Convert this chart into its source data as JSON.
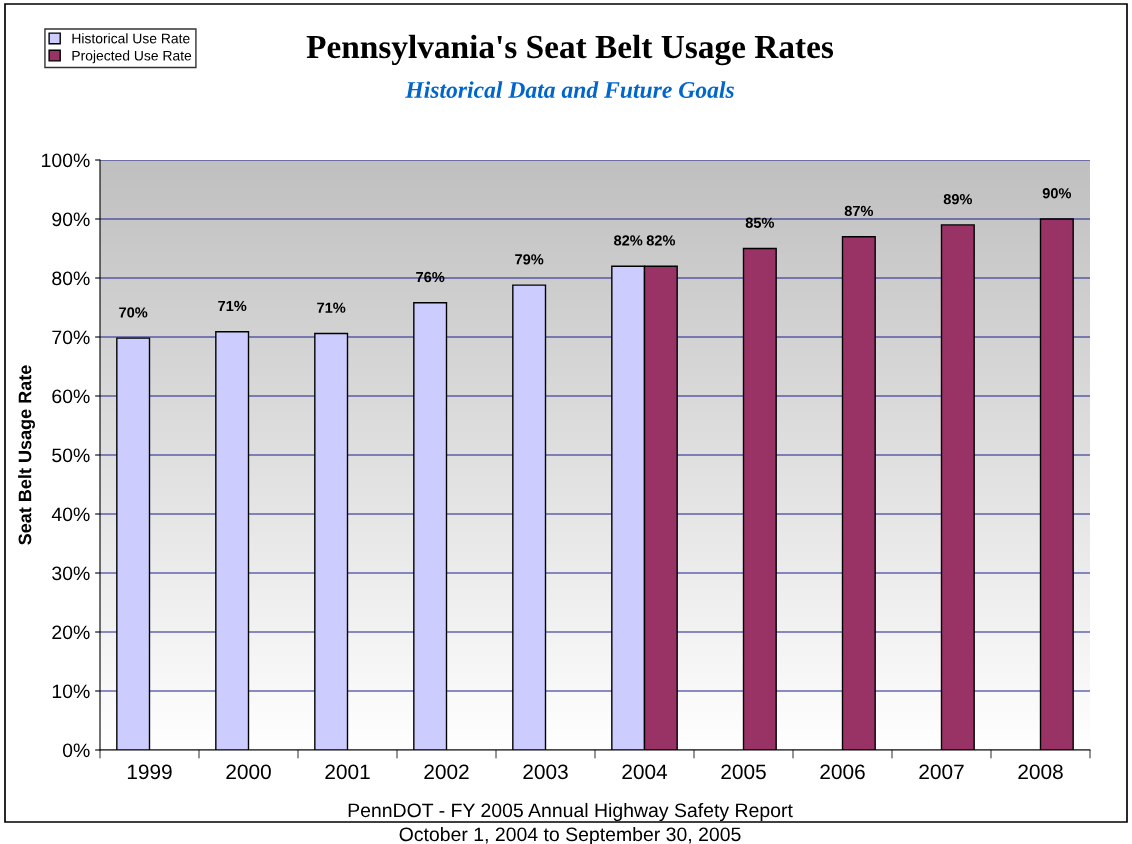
{
  "chart_data": {
    "type": "bar",
    "title": "Pennsylvania's Seat Belt Usage Rates",
    "subtitle": "Historical Data and Future Goals",
    "ylabel": "Seat Belt Usage Rate",
    "categories": [
      "1999",
      "2000",
      "2001",
      "2002",
      "2003",
      "2004",
      "2005",
      "2006",
      "2007",
      "2008"
    ],
    "series": [
      {
        "name": "Historical Use Rate",
        "color": "#ccccff",
        "values": [
          69.8,
          70.9,
          70.6,
          75.8,
          78.8,
          82,
          null,
          null,
          null,
          null
        ],
        "value_labels": [
          "70%",
          "71%",
          "71%",
          "76%",
          "79%",
          "82%",
          null,
          null,
          null,
          null
        ]
      },
      {
        "name": "Projected Use Rate",
        "color": "#993366",
        "values": [
          null,
          null,
          null,
          null,
          null,
          82,
          85,
          87,
          89,
          90
        ],
        "value_labels": [
          null,
          null,
          null,
          null,
          null,
          "82%",
          "85%",
          "87%",
          "89%",
          "90%"
        ]
      }
    ],
    "ylim": [
      0,
      100
    ],
    "yticks": [
      {
        "value": 0,
        "label": "0%"
      },
      {
        "value": 10,
        "label": "10%"
      },
      {
        "value": 20,
        "label": "20%"
      },
      {
        "value": 30,
        "label": "30%"
      },
      {
        "value": 40,
        "label": "40%"
      },
      {
        "value": 50,
        "label": "50%"
      },
      {
        "value": 60,
        "label": "60%"
      },
      {
        "value": 70,
        "label": "70%"
      },
      {
        "value": 80,
        "label": "80%"
      },
      {
        "value": 90,
        "label": "90%"
      },
      {
        "value": 100,
        "label": "100%"
      }
    ],
    "grid": "y",
    "legend": "top left",
    "annotations": [
      "PennDOT - FY 2005 Annual Highway Safety Report",
      "October 1, 2004 to September 30, 2005"
    ]
  }
}
